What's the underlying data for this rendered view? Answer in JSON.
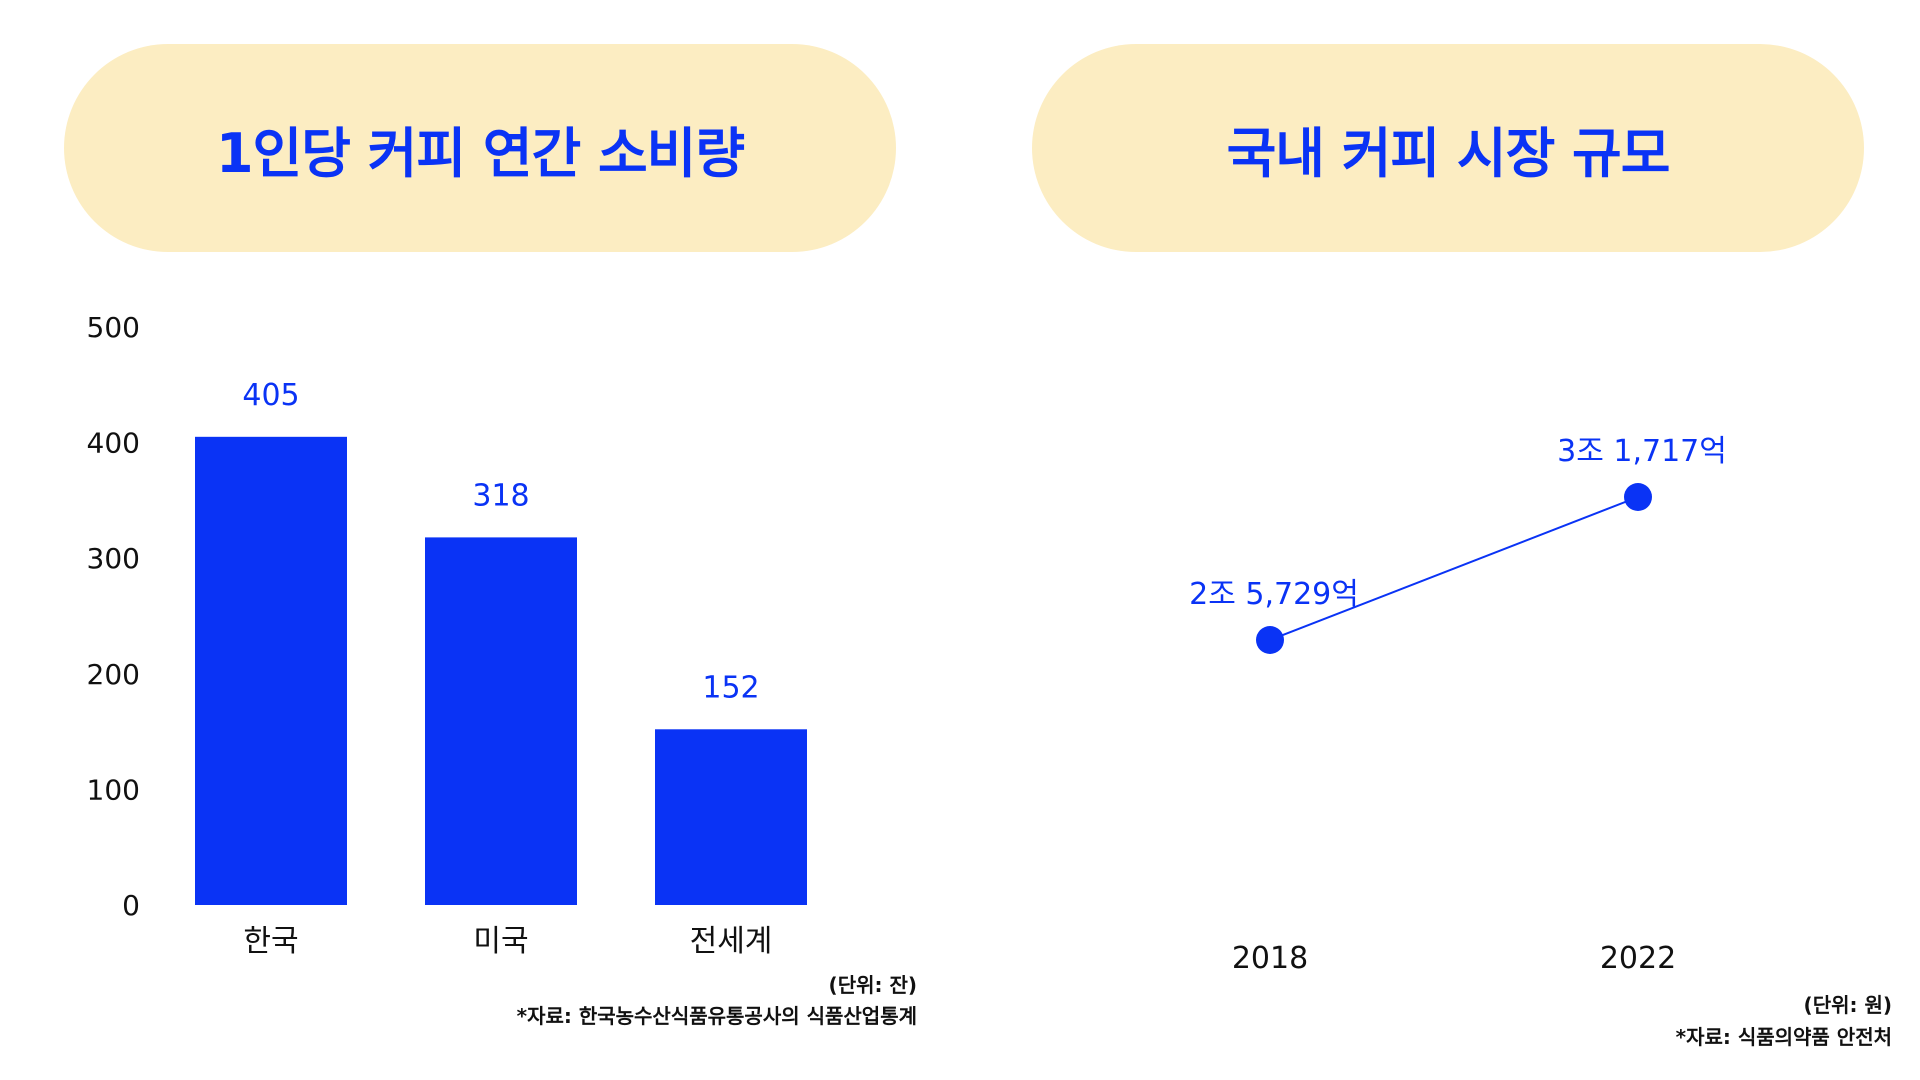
{
  "colors": {
    "accent": "#0a33f5",
    "pill_bg": "#fcedc2",
    "text": "#111111"
  },
  "chart_data": [
    {
      "type": "bar",
      "title": "1인당 커피 연간 소비량",
      "categories": [
        "한국",
        "미국",
        "전세계"
      ],
      "values": [
        405,
        318,
        152
      ],
      "value_labels": [
        "405",
        "318",
        "152"
      ],
      "ylim": [
        0,
        500
      ],
      "yticks": [
        0,
        100,
        200,
        300,
        400,
        500
      ],
      "xlabel": "",
      "ylabel": "",
      "grid": false,
      "unit_note": "(단위: 잔)",
      "source_note": "*자료: 한국농수산식품유통공사의 식품산업통계"
    },
    {
      "type": "line",
      "title": "국내 커피 시장 규모",
      "x": [
        "2018",
        "2022"
      ],
      "values": [
        25729,
        31717
      ],
      "value_unit": "억원",
      "value_labels": [
        "2조 5,729억",
        "3조 1,717억"
      ],
      "xlabel": "",
      "ylabel": "",
      "grid": false,
      "unit_note": "(단위: 원)",
      "source_note": "*자료: 식품의약품 안전처"
    }
  ]
}
